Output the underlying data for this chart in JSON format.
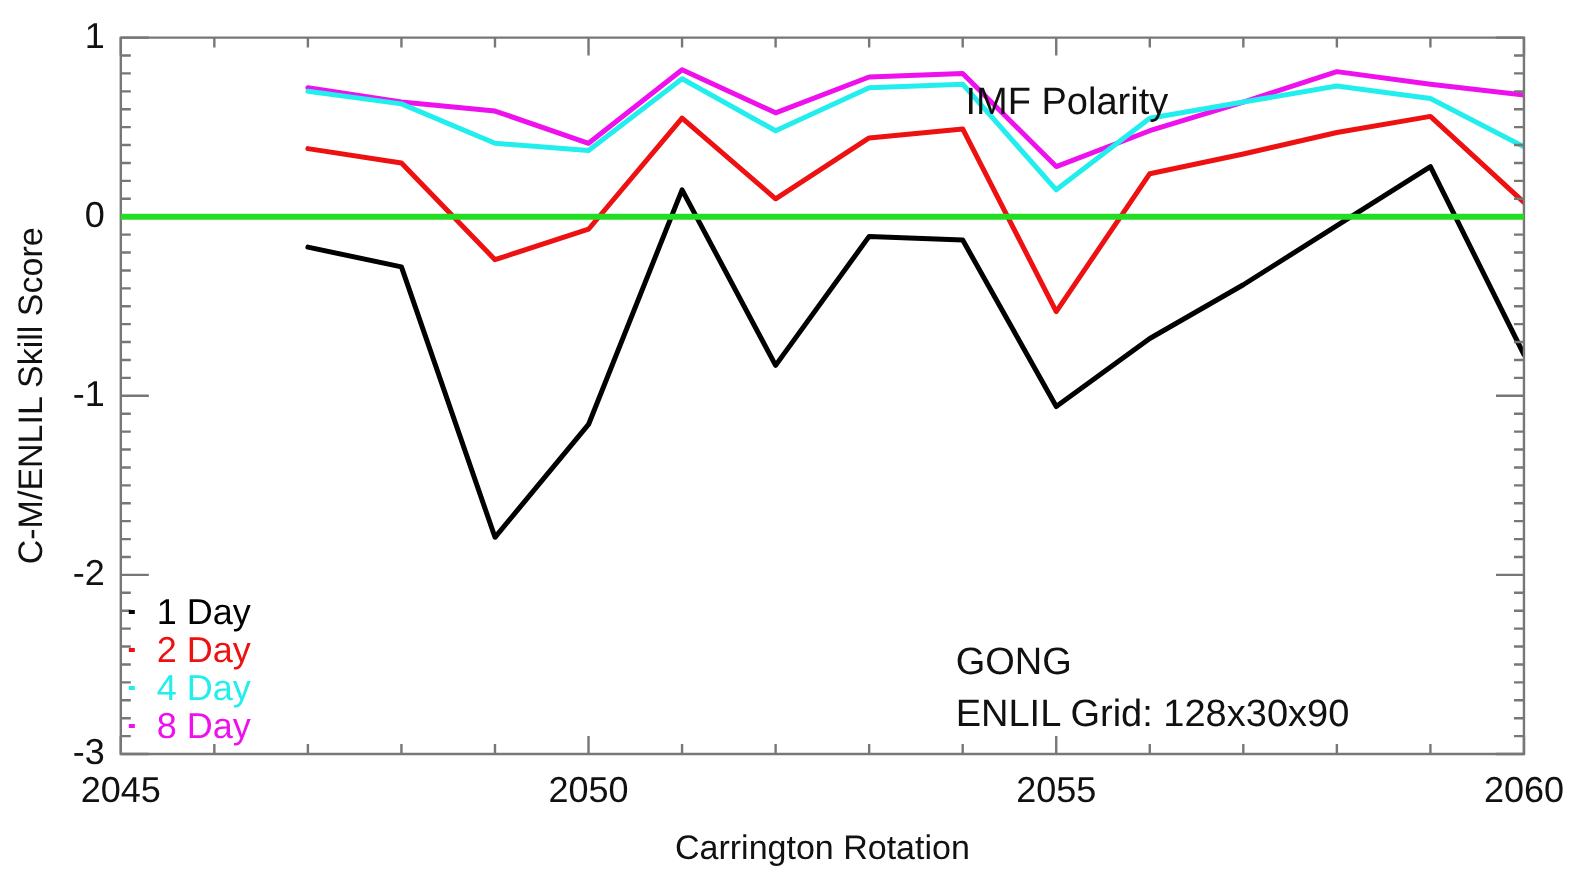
{
  "chart_data": {
    "type": "line",
    "xlabel": "Carrington Rotation",
    "ylabel": "C-M/ENLIL Skill Score",
    "x": [
      2047,
      2048,
      2049,
      2050,
      2051,
      2052,
      2053,
      2054,
      2055,
      2056,
      2057,
      2058,
      2059,
      2060
    ],
    "series": [
      {
        "name": "1 Day",
        "color": "#000000",
        "values": [
          -0.17,
          -0.28,
          -1.79,
          -1.16,
          0.15,
          -0.83,
          -0.11,
          -0.13,
          -1.06,
          -0.68,
          -0.38,
          -0.05,
          0.28,
          -0.77
        ]
      },
      {
        "name": "2 Day",
        "color": "#ee1111",
        "values": [
          0.38,
          0.3,
          -0.24,
          -0.07,
          0.55,
          0.1,
          0.44,
          0.49,
          -0.53,
          0.24,
          0.35,
          0.47,
          0.56,
          0.08
        ]
      },
      {
        "name": "4 Day",
        "color": "#22eeee",
        "values": [
          0.7,
          0.63,
          0.41,
          0.37,
          0.77,
          0.48,
          0.72,
          0.74,
          0.15,
          0.55,
          0.64,
          0.73,
          0.66,
          0.39
        ]
      },
      {
        "name": "8 Day",
        "color": "#ee11ee",
        "values": [
          0.72,
          0.64,
          0.59,
          0.41,
          0.82,
          0.58,
          0.78,
          0.8,
          0.28,
          0.48,
          0.64,
          0.81,
          0.74,
          0.68
        ]
      }
    ],
    "xlim": [
      2045,
      2060
    ],
    "xticks": [
      2045,
      {
        "value": 2046,
        "label": null
      },
      {
        "value": 2047,
        "label": null
      },
      {
        "value": 2048,
        "label": null
      },
      {
        "value": 2049,
        "label": null
      },
      2050,
      {
        "value": 2051,
        "label": null
      },
      {
        "value": 2052,
        "label": null
      },
      {
        "value": 2053,
        "label": null
      },
      {
        "value": 2054,
        "label": null
      },
      2055,
      {
        "value": 2056,
        "label": null
      },
      {
        "value": 2057,
        "label": null
      },
      {
        "value": 2058,
        "label": null
      },
      {
        "value": 2059,
        "label": null
      },
      2060
    ],
    "ylim": [
      -3,
      1
    ],
    "yticks": [
      -3,
      {
        "value": -2.9,
        "label": null
      },
      {
        "value": -2.8,
        "label": null
      },
      {
        "value": -2.7,
        "label": null
      },
      {
        "value": -2.6,
        "label": null
      },
      {
        "value": -2.5,
        "label": null
      },
      {
        "value": -2.4,
        "label": null
      },
      {
        "value": -2.3,
        "label": null
      },
      {
        "value": -2.2,
        "label": null
      },
      {
        "value": -2.1,
        "label": null
      },
      -2,
      {
        "value": -1.9,
        "label": null
      },
      {
        "value": -1.8,
        "label": null
      },
      {
        "value": -1.7,
        "label": null
      },
      {
        "value": -1.6,
        "label": null
      },
      {
        "value": -1.5,
        "label": null
      },
      {
        "value": -1.4,
        "label": null
      },
      {
        "value": -1.3,
        "label": null
      },
      {
        "value": -1.2,
        "label": null
      },
      {
        "value": -1.1,
        "label": null
      },
      -1,
      {
        "value": -0.9,
        "label": null
      },
      {
        "value": -0.8,
        "label": null
      },
      {
        "value": -0.7,
        "label": null
      },
      {
        "value": -0.6,
        "label": null
      },
      {
        "value": -0.5,
        "label": null
      },
      {
        "value": -0.4,
        "label": null
      },
      {
        "value": -0.3,
        "label": null
      },
      {
        "value": -0.2,
        "label": null
      },
      {
        "value": -0.1,
        "label": null
      },
      0,
      {
        "value": 0.1,
        "label": null
      },
      {
        "value": 0.2,
        "label": null
      },
      {
        "value": 0.3,
        "label": null
      },
      {
        "value": 0.4,
        "label": null
      },
      {
        "value": 0.5,
        "label": null
      },
      {
        "value": 0.6,
        "label": null
      },
      {
        "value": 0.7,
        "label": null
      },
      {
        "value": 0.8,
        "label": null
      },
      {
        "value": 0.9,
        "label": null
      },
      1
    ],
    "ref_lines": [
      {
        "axis": "y",
        "value": 0,
        "color": "#22dd22"
      }
    ],
    "annotations": [
      "IMF Polarity",
      "GONG",
      "ENLIL Grid: 128x30x90"
    ],
    "legend": "bottom left",
    "grid": false,
    "marker": "none",
    "line_style": "solid"
  }
}
